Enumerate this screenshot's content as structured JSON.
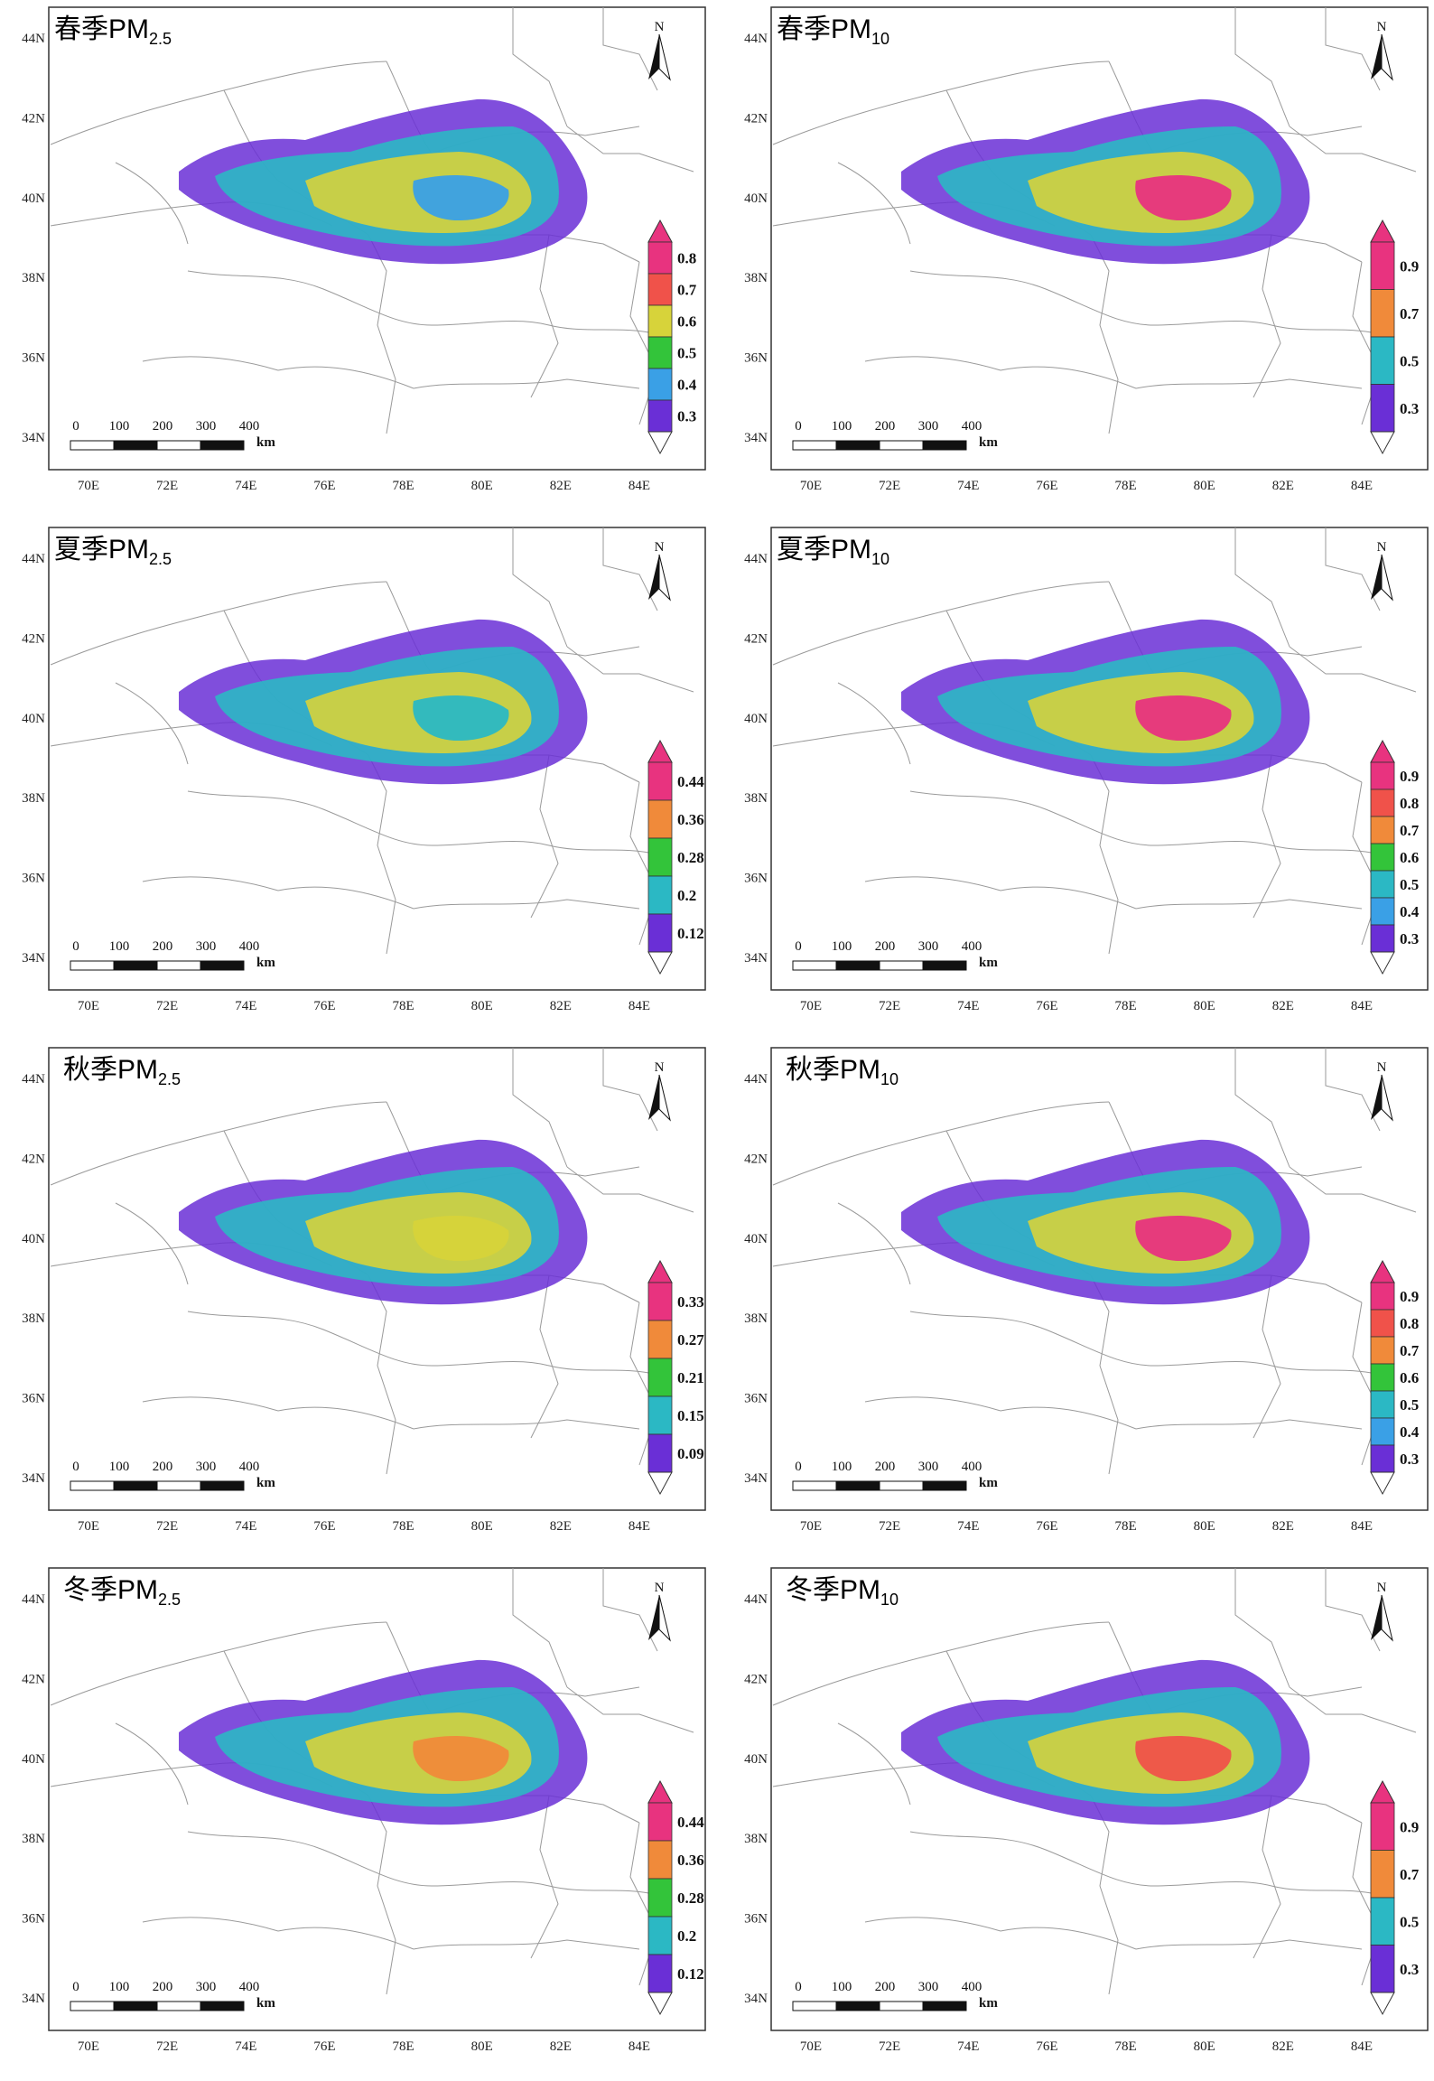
{
  "figure": {
    "lat_labels": [
      "44N",
      "42N",
      "40N",
      "38N",
      "36N",
      "34N"
    ],
    "lon_labels": [
      "70E",
      "72E",
      "74E",
      "76E",
      "78E",
      "80E",
      "82E",
      "84E"
    ],
    "north_label": "N",
    "scale": {
      "ticks": [
        "0",
        "100",
        "200",
        "300",
        "400"
      ],
      "unit": "km"
    }
  },
  "panels": [
    {
      "season": "春季",
      "pollutant": "PM",
      "sub": "2.5",
      "legend": [
        "0.8",
        "0.7",
        "0.6",
        "0.5",
        "0.4",
        "0.3"
      ],
      "fill": "#3aa0e6"
    },
    {
      "season": "春季",
      "pollutant": "PM",
      "sub": "10",
      "legend": [
        "0.9",
        "0.7",
        "0.5",
        "0.3"
      ],
      "fill": "#e8337f"
    },
    {
      "season": "夏季",
      "pollutant": "PM",
      "sub": "2.5",
      "legend": [
        "0.44",
        "0.36",
        "0.28",
        "0.2",
        "0.12"
      ],
      "fill": "#2bb8c4"
    },
    {
      "season": "夏季",
      "pollutant": "PM",
      "sub": "10",
      "legend": [
        "0.9",
        "0.8",
        "0.7",
        "0.6",
        "0.5",
        "0.4",
        "0.3"
      ],
      "fill": "#e8337f"
    },
    {
      "season": "秋季",
      "pollutant": "PM",
      "sub": "2.5",
      "legend": [
        "0.33",
        "0.27",
        "0.21",
        "0.15",
        "0.09"
      ],
      "fill": "#d7d33a"
    },
    {
      "season": "秋季",
      "pollutant": "PM",
      "sub": "10",
      "legend": [
        "0.9",
        "0.8",
        "0.7",
        "0.6",
        "0.5",
        "0.4",
        "0.3"
      ],
      "fill": "#e8337f"
    },
    {
      "season": "冬季",
      "pollutant": "PM",
      "sub": "2.5",
      "legend": [
        "0.44",
        "0.36",
        "0.28",
        "0.2",
        "0.12"
      ],
      "fill": "#f08a3a"
    },
    {
      "season": "冬季",
      "pollutant": "PM",
      "sub": "10",
      "legend": [
        "0.9",
        "0.7",
        "0.5",
        "0.3"
      ],
      "fill": "#f0524a"
    }
  ],
  "colors": {
    "magenta": "#e8337f",
    "red": "#f0524a",
    "orange": "#f08a3a",
    "yellow": "#d7d33a",
    "green": "#33c43a",
    "cyan": "#2bb8c4",
    "blue": "#3aa0e6",
    "violet": "#6a2fd6",
    "border": "#9a9a9a"
  }
}
